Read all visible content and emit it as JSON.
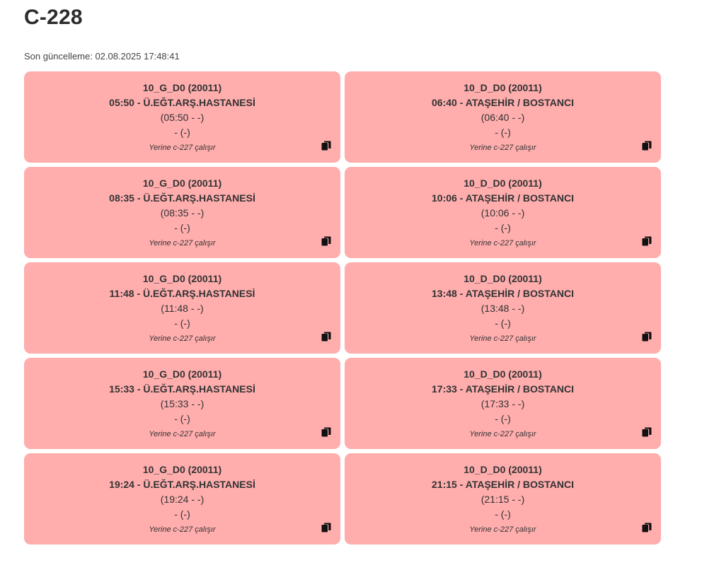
{
  "header": {
    "title": "C-228",
    "last_updated": "Son güncelleme: 02.08.2025 17:48:41"
  },
  "icons": {
    "copy": "copy-icon"
  },
  "colors": {
    "card_background": "#ffadad",
    "text": "#333333"
  },
  "cards": [
    {
      "route": "10_G_D0 (20011)",
      "departure": "05:50 - Ü.EĞT.ARŞ.HASTANESİ",
      "actual": "(05:50 - -)",
      "status": "- (-)",
      "note": "Yerine c-227 çalışır"
    },
    {
      "route": "10_D_D0 (20011)",
      "departure": "06:40 - ATAŞEHİR / BOSTANCI",
      "actual": "(06:40 - -)",
      "status": "- (-)",
      "note": "Yerine c-227 çalışır"
    },
    {
      "route": "10_G_D0 (20011)",
      "departure": "08:35 - Ü.EĞT.ARŞ.HASTANESİ",
      "actual": "(08:35 - -)",
      "status": "- (-)",
      "note": "Yerine c-227 çalışır"
    },
    {
      "route": "10_D_D0 (20011)",
      "departure": "10:06 - ATAŞEHİR / BOSTANCI",
      "actual": "(10:06 - -)",
      "status": "- (-)",
      "note": "Yerine c-227 çalışır"
    },
    {
      "route": "10_G_D0 (20011)",
      "departure": "11:48 - Ü.EĞT.ARŞ.HASTANESİ",
      "actual": "(11:48 - -)",
      "status": "- (-)",
      "note": "Yerine c-227 çalışır"
    },
    {
      "route": "10_D_D0 (20011)",
      "departure": "13:48 - ATAŞEHİR / BOSTANCI",
      "actual": "(13:48 - -)",
      "status": "- (-)",
      "note": "Yerine c-227 çalışır"
    },
    {
      "route": "10_G_D0 (20011)",
      "departure": "15:33 - Ü.EĞT.ARŞ.HASTANESİ",
      "actual": "(15:33 - -)",
      "status": "- (-)",
      "note": "Yerine c-227 çalışır"
    },
    {
      "route": "10_D_D0 (20011)",
      "departure": "17:33 - ATAŞEHİR / BOSTANCI",
      "actual": "(17:33 - -)",
      "status": "- (-)",
      "note": "Yerine c-227 çalışır"
    },
    {
      "route": "10_G_D0 (20011)",
      "departure": "19:24 - Ü.EĞT.ARŞ.HASTANESİ",
      "actual": "(19:24 - -)",
      "status": "- (-)",
      "note": "Yerine c-227 çalışır"
    },
    {
      "route": "10_D_D0 (20011)",
      "departure": "21:15 - ATAŞEHİR / BOSTANCI",
      "actual": "(21:15 - -)",
      "status": "- (-)",
      "note": "Yerine c-227 çalışır"
    }
  ]
}
